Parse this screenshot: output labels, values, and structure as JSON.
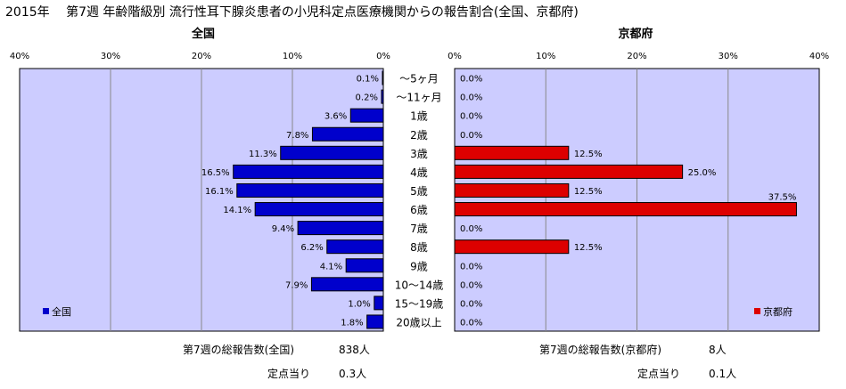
{
  "title": "2015年　 第7週 年齢階級別 流行性耳下腺炎患者の小児科定点医療機関からの報告割合(全国、京都府)",
  "colors": {
    "plot_bg": "#CCCCFF",
    "national_bar": "#0000CC",
    "kyoto_bar": "#DD0000",
    "gridline": "#888888"
  },
  "chart_data": [
    {
      "type": "bar",
      "orientation": "horizontal",
      "panel": "left",
      "title": "全国",
      "xlim": [
        0,
        40
      ],
      "x_direction": "reversed",
      "ticks": [
        "40%",
        "30%",
        "20%",
        "10%",
        "0%"
      ],
      "categories": [
        "〜5ヶ月",
        "〜11ヶ月",
        "1歳",
        "2歳",
        "3歳",
        "4歳",
        "5歳",
        "6歳",
        "7歳",
        "8歳",
        "9歳",
        "10〜14歳",
        "15〜19歳",
        "20歳以上"
      ],
      "series": [
        {
          "name": "全国",
          "values": [
            0.1,
            0.2,
            3.6,
            7.8,
            11.3,
            16.5,
            16.1,
            14.1,
            9.4,
            6.2,
            4.1,
            7.9,
            1.0,
            1.8
          ],
          "labels": [
            "0.1%",
            "0.2%",
            "3.6%",
            "7.8%",
            "11.3%",
            "16.5%",
            "16.1%",
            "14.1%",
            "9.4%",
            "6.2%",
            "4.1%",
            "7.9%",
            "1.0%",
            "1.8%"
          ]
        }
      ],
      "legend_position": "bottom-left",
      "grid": true
    },
    {
      "type": "bar",
      "orientation": "horizontal",
      "panel": "right",
      "title": "京都府",
      "xlim": [
        0,
        40
      ],
      "ticks": [
        "0%",
        "10%",
        "20%",
        "30%",
        "40%"
      ],
      "categories": [
        "〜5ヶ月",
        "〜11ヶ月",
        "1歳",
        "2歳",
        "3歳",
        "4歳",
        "5歳",
        "6歳",
        "7歳",
        "8歳",
        "9歳",
        "10〜14歳",
        "15〜19歳",
        "20歳以上"
      ],
      "series": [
        {
          "name": "京都府",
          "values": [
            0,
            0,
            0,
            0,
            12.5,
            25.0,
            12.5,
            37.5,
            0,
            12.5,
            0,
            0,
            0,
            0
          ],
          "labels": [
            "0.0%",
            "0.0%",
            "0.0%",
            "0.0%",
            "12.5%",
            "25.0%",
            "12.5%",
            "37.5%",
            "0.0%",
            "12.5%",
            "0.0%",
            "0.0%",
            "0.0%",
            "0.0%"
          ]
        }
      ],
      "legend_position": "bottom-right",
      "grid": true
    }
  ],
  "footer": {
    "national_total_label": "第7週の総報告数(全国)",
    "national_total_value": "838人",
    "national_per_site_label": "定点当り",
    "national_per_site_value": "0.3人",
    "kyoto_total_label": "第7週の総報告数(京都府)",
    "kyoto_total_value": "8人",
    "kyoto_per_site_label": "定点当り",
    "kyoto_per_site_value": "0.1人"
  }
}
